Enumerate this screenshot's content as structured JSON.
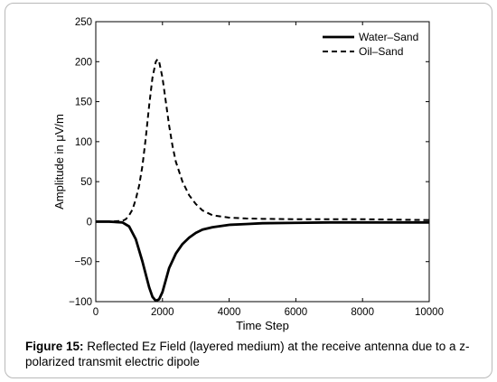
{
  "figure": {
    "caption_label": "Figure 15:",
    "caption_text": " Reflected Ez Field (layered medium) at the receive antenna due to a z-polarized transmit electric dipole"
  },
  "chart_data": {
    "type": "line",
    "title": "",
    "xlabel": "Time Step",
    "ylabel": "Amplitude in μV/m",
    "xlim": [
      0,
      10000
    ],
    "ylim": [
      -100,
      250
    ],
    "xticks": [
      0,
      2000,
      4000,
      6000,
      8000,
      10000
    ],
    "yticks": [
      -100,
      -50,
      0,
      50,
      100,
      150,
      200,
      250
    ],
    "xtick_labels": [
      "0",
      "2000",
      "4000",
      "6000",
      "8000",
      "10000"
    ],
    "ytick_labels": [
      "−100",
      "−50",
      "0",
      "50",
      "100",
      "150",
      "200",
      "250"
    ],
    "grid": false,
    "legend_position": "top-right",
    "series": [
      {
        "name": "Water–Sand",
        "style": "solid",
        "color": "#000000",
        "x": [
          0,
          400,
          800,
          1000,
          1200,
          1400,
          1600,
          1700,
          1800,
          1900,
          2000,
          2100,
          2200,
          2400,
          2600,
          2800,
          3000,
          3200,
          3500,
          4000,
          4500,
          5000,
          6000,
          7000,
          8000,
          9000,
          10000
        ],
        "y": [
          0,
          0,
          -1,
          -6,
          -22,
          -50,
          -82,
          -94,
          -99,
          -97,
          -88,
          -73,
          -58,
          -40,
          -28,
          -20,
          -14,
          -10,
          -7,
          -4,
          -3,
          -2,
          -1.5,
          -1,
          -1,
          -1,
          -1
        ]
      },
      {
        "name": "Oil–Sand",
        "style": "dashed",
        "color": "#000000",
        "x": [
          0,
          400,
          800,
          900,
          1000,
          1100,
          1200,
          1300,
          1400,
          1500,
          1600,
          1700,
          1800,
          1850,
          1900,
          2000,
          2100,
          2200,
          2300,
          2400,
          2600,
          2800,
          3000,
          3200,
          3500,
          4000,
          4500,
          5000,
          6000,
          7000,
          8000,
          9000,
          10000
        ],
        "y": [
          0,
          0,
          1,
          3,
          8,
          15,
          28,
          45,
          70,
          105,
          145,
          180,
          200,
          203,
          200,
          180,
          150,
          120,
          95,
          75,
          50,
          33,
          22,
          14,
          8,
          5,
          4,
          3.5,
          3,
          3,
          3,
          2.5,
          2
        ]
      }
    ]
  }
}
